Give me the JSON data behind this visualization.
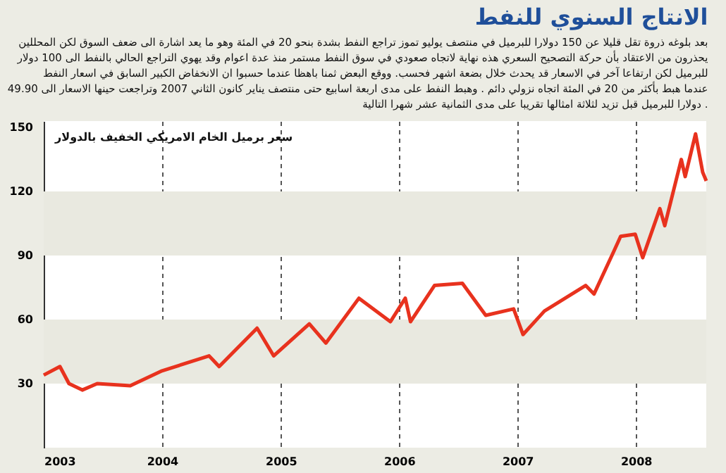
{
  "chart_data": {
    "type": "line",
    "title": "الانتاج السنوي للنفط",
    "subtitle": [
      "بعد بلوغه ذروة تقل قليلا عن 150 دولارا للبرميل في منتصف يوليو تموز تراجع النفط بشدة بنحو 20 في المئة وهو ما يعد اشارة الى ضعف السوق لكن المحللين",
      "يحذرون من الاعتقاد بأن حركة التصحيح السعري هذه نهاية لاتجاه صعودي في سوق النفط مستمر منذ عدة اعوام وقد يهوي التراجع الحالي بالنفط الى 100 دولار",
      "للبرميل لكن ارتفاعا آخر في الاسعار قد يحدث خلال بضعة اشهر فحسب. ووقع البعض ثمنا باهظا عندما حسبوا ان الانخفاض الكبير السابق في اسعار النفط",
      "عندما هبط بأكثر من 20 في المئة اتجاه نزولي دائم . وهبط النفط على مدى اربعة اسابيع حتى منتصف يناير كانون الثاني 2007 وتراجعت حينها الاسعار الى 49.90",
      "دولارا للبرميل قبل تزيد لثلاثة امثالها تقريبا على مدى الثمانية عشر شهرا التالية ."
    ],
    "ylabel": "سعر برميل الخام الامريكي الخفيف بالدولار",
    "x": [
      "2003-01-01",
      "2003-02-20",
      "2003-03-20",
      "2003-04-30",
      "2003-06-15",
      "2003-09-25",
      "2004-01-01",
      "2004-05-25",
      "2004-06-25",
      "2004-10-20",
      "2004-12-10",
      "2005-03-30",
      "2005-05-20",
      "2005-08-30",
      "2005-12-05",
      "2006-01-20",
      "2006-02-05",
      "2006-04-20",
      "2006-07-15",
      "2006-09-25",
      "2006-12-20",
      "2007-01-18",
      "2007-03-25",
      "2007-07-30",
      "2007-08-25",
      "2007-10-25",
      "2007-11-15",
      "2007-12-30",
      "2008-01-22",
      "2008-03-15",
      "2008-03-30",
      "2008-05-20",
      "2008-06-01",
      "2008-07-03",
      "2008-07-25",
      "2008-08-05"
    ],
    "series": [
      {
        "color": "#e8321e",
        "values": [
          34,
          38,
          30,
          27,
          30,
          29,
          36,
          43,
          38,
          56,
          43,
          58,
          49,
          70,
          59,
          70,
          59,
          76,
          77,
          62,
          65,
          53,
          64,
          76,
          72,
          92,
          99,
          100,
          89,
          112,
          104,
          135,
          127,
          147,
          129,
          125
        ]
      }
    ],
    "xlim": [
      "2003-01-01",
      "2008-08-05"
    ],
    "xticks": [
      {
        "value": "2003-01-01",
        "label": "2003"
      },
      {
        "value": "2004-01-01",
        "label": "2004"
      },
      {
        "value": "2005-01-01",
        "label": "2005"
      },
      {
        "value": "2006-01-01",
        "label": "2006"
      },
      {
        "value": "2007-01-01",
        "label": "2007"
      },
      {
        "value": "2008-01-01",
        "label": "2008"
      }
    ],
    "ylim": [
      0,
      153
    ],
    "yticks": [
      30,
      60,
      90,
      120,
      150
    ],
    "bands": [
      {
        "axis": "y",
        "from": 30,
        "to": 60,
        "color": "#e9e9e0"
      },
      {
        "axis": "y",
        "from": 90,
        "to": 120,
        "color": "#e9e9e0"
      }
    ],
    "grid": "x",
    "marker": "none",
    "line_style": "solid"
  }
}
